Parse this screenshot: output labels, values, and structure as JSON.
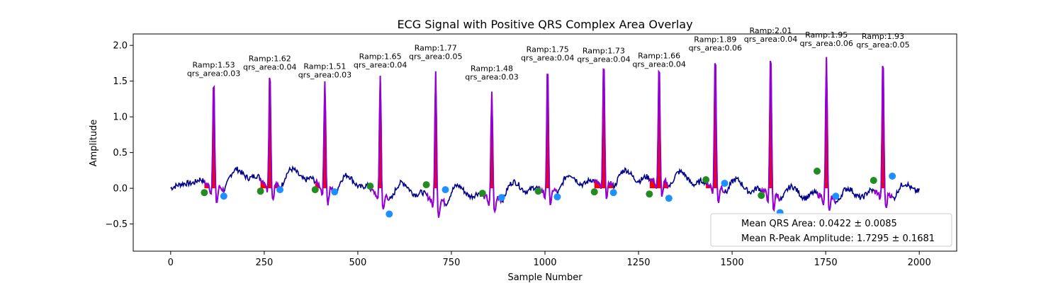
{
  "chart_data": {
    "type": "line",
    "title": "ECG Signal with Positive QRS Complex Area Overlay",
    "xlabel": "Sample Number",
    "ylabel": "Amplitude",
    "xlim": [
      -100,
      2100
    ],
    "ylim": [
      -0.88,
      2.16
    ],
    "x_ticks": [
      0,
      250,
      500,
      750,
      1000,
      1250,
      1500,
      1750,
      2000
    ],
    "y_ticks": [
      -0.5,
      0.0,
      0.5,
      1.0,
      1.5,
      2.0
    ],
    "x_tick_labels": [
      "0",
      "250",
      "500",
      "750",
      "1000",
      "1250",
      "1500",
      "1750",
      "2000"
    ],
    "y_tick_labels": [
      "−0.5",
      "0.0",
      "0.5",
      "1.0",
      "1.5",
      "2.0"
    ],
    "grid": false,
    "legend": {
      "position": "lower-right",
      "entries": [
        "Mean QRS Area: 0.0422 ± 0.0085",
        "Mean R-Peak Amplitude: 1.7295 ± 0.1681"
      ]
    },
    "colors": {
      "signal": "#00008b",
      "qrs_segment": "#9400d3",
      "qrs_area": "#ff0000",
      "onset_marker": "#228b22",
      "offset_marker": "#1e90ff"
    },
    "beats": [
      {
        "r_x": 115,
        "r_amp": 1.53,
        "qrs_area": 0.03,
        "on_x": 90,
        "on_y": -0.06,
        "off_x": 142,
        "off_y": -0.11,
        "ramp_label": "Ramp:1.53",
        "area_label": "qrs_area:0.03"
      },
      {
        "r_x": 265,
        "r_amp": 1.62,
        "qrs_area": 0.04,
        "on_x": 240,
        "on_y": -0.04,
        "off_x": 292,
        "off_y": -0.02,
        "ramp_label": "Ramp:1.62",
        "area_label": "qrs_area:0.04"
      },
      {
        "r_x": 412,
        "r_amp": 1.51,
        "qrs_area": 0.03,
        "on_x": 386,
        "on_y": -0.02,
        "off_x": 438,
        "off_y": -0.05,
        "ramp_label": "Ramp:1.51",
        "area_label": "qrs_area:0.03"
      },
      {
        "r_x": 560,
        "r_amp": 1.65,
        "qrs_area": 0.04,
        "on_x": 533,
        "on_y": 0.03,
        "off_x": 584,
        "off_y": -0.36,
        "ramp_label": "Ramp:1.65",
        "area_label": "qrs_area:0.04"
      },
      {
        "r_x": 708,
        "r_amp": 1.77,
        "qrs_area": 0.05,
        "on_x": 683,
        "on_y": 0.05,
        "off_x": 734,
        "off_y": -0.02,
        "ramp_label": "Ramp:1.77",
        "area_label": "qrs_area:0.05"
      },
      {
        "r_x": 858,
        "r_amp": 1.48,
        "qrs_area": 0.03,
        "on_x": 833,
        "on_y": -0.07,
        "off_x": 884,
        "off_y": -0.13,
        "ramp_label": "Ramp:1.48",
        "area_label": "qrs_area:0.03"
      },
      {
        "r_x": 1007,
        "r_amp": 1.75,
        "qrs_area": 0.04,
        "on_x": 982,
        "on_y": -0.04,
        "off_x": 1033,
        "off_y": -0.12,
        "ramp_label": "Ramp:1.75",
        "area_label": "qrs_area:0.04"
      },
      {
        "r_x": 1157,
        "r_amp": 1.73,
        "qrs_area": 0.04,
        "on_x": 1132,
        "on_y": -0.05,
        "off_x": 1183,
        "off_y": -0.06,
        "ramp_label": "Ramp:1.73",
        "area_label": "qrs_area:0.04"
      },
      {
        "r_x": 1305,
        "r_amp": 1.66,
        "qrs_area": 0.04,
        "on_x": 1279,
        "on_y": -0.08,
        "off_x": 1331,
        "off_y": -0.14,
        "ramp_label": "Ramp:1.66",
        "area_label": "qrs_area:0.04"
      },
      {
        "r_x": 1455,
        "r_amp": 1.89,
        "qrs_area": 0.06,
        "on_x": 1430,
        "on_y": 0.12,
        "off_x": 1480,
        "off_y": 0.07,
        "ramp_label": "Ramp:1.89",
        "area_label": "qrs_area:0.06"
      },
      {
        "r_x": 1603,
        "r_amp": 2.01,
        "qrs_area": 0.04,
        "on_x": 1578,
        "on_y": -0.1,
        "off_x": 1628,
        "off_y": -0.34,
        "ramp_label": "Ramp:2.01",
        "area_label": "qrs_area:0.04"
      },
      {
        "r_x": 1752,
        "r_amp": 1.95,
        "qrs_area": 0.06,
        "on_x": 1727,
        "on_y": 0.24,
        "off_x": 1777,
        "off_y": -0.11,
        "ramp_label": "Ramp:1.95",
        "area_label": "qrs_area:0.06"
      },
      {
        "r_x": 1903,
        "r_amp": 1.93,
        "qrs_area": 0.05,
        "on_x": 1878,
        "on_y": 0.11,
        "off_x": 1928,
        "off_y": 0.17,
        "ramp_label": "Ramp:1.93",
        "area_label": "qrs_area:0.05"
      }
    ]
  }
}
